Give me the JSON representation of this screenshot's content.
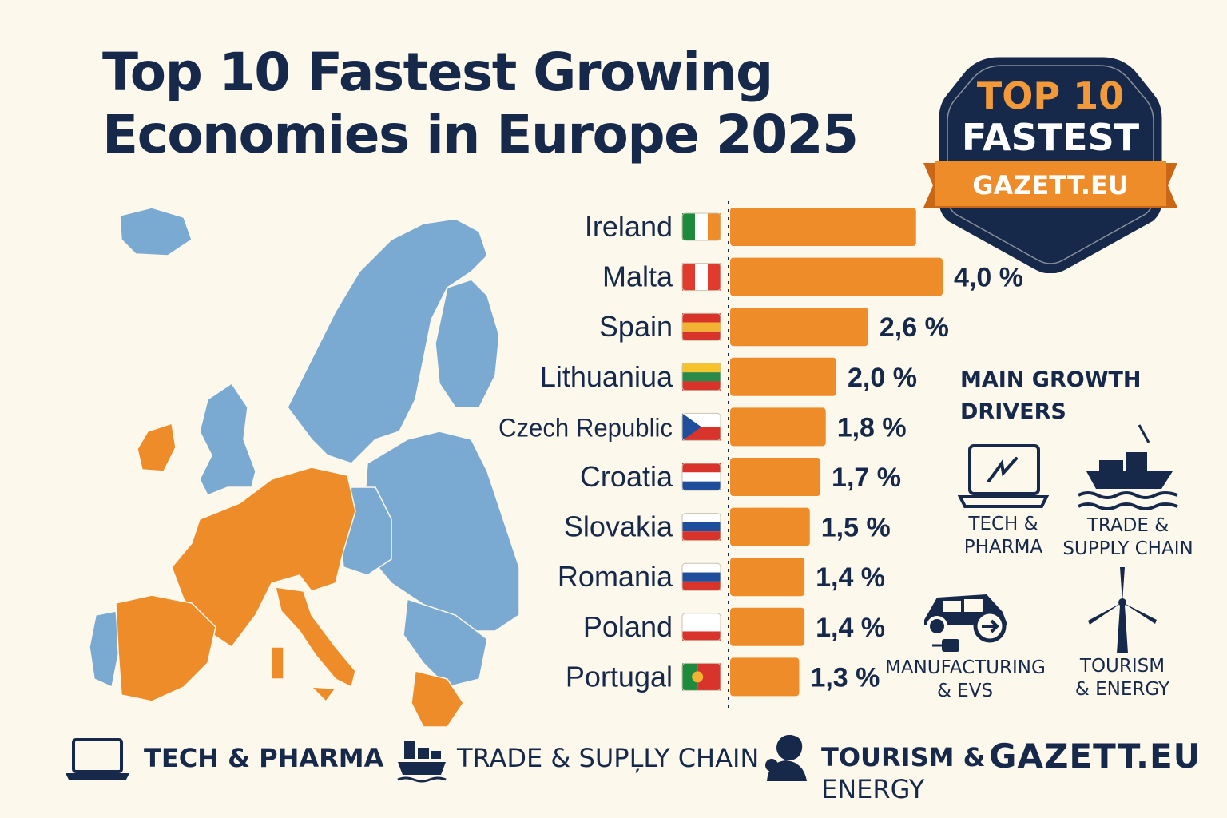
{
  "title": {
    "line1": "Top 10 Fastest Growing",
    "line2": "Economies in Europe 2025"
  },
  "badge": {
    "line1": "TOP 10",
    "line2": "FASTEST",
    "ribbon": "GAZETT.EU"
  },
  "colors": {
    "bar": "#ef8c2a",
    "map_highlight": "#ef8c2a",
    "map_other": "#7aa9d1",
    "navy": "#16294a",
    "background": "#fdf8ec"
  },
  "chart_data": {
    "type": "bar",
    "orientation": "horizontal",
    "categories": [
      "Ireland",
      "Malta",
      "Spain",
      "Lithuaniua",
      "Czech Republic",
      "Croatia",
      "Slovakia",
      "Romania",
      "Poland",
      "Portugal"
    ],
    "values": [
      3.5,
      4.0,
      2.6,
      2.0,
      1.8,
      1.7,
      1.5,
      1.4,
      1.4,
      1.3
    ],
    "value_labels": [
      "",
      "4,0 %",
      "2,6 %",
      "2,0 %",
      "1,8 %",
      "1,7 %",
      "1,5 %",
      "1,4 %",
      "1,4 %",
      "1,3 %"
    ],
    "xlim": [
      0,
      4.0
    ],
    "grid": false,
    "legend": "none"
  },
  "flags": [
    {
      "country": "Ireland",
      "icon": "ireland-flag-icon",
      "colors": [
        "#1e8a3c",
        "#ffffff",
        "#ef8c2a"
      ],
      "layout": "vertical"
    },
    {
      "country": "Malta",
      "icon": "malta-flag-icon",
      "colors": [
        "#e03b2c",
        "#ffffff",
        "#e03b2c"
      ],
      "layout": "vertical"
    },
    {
      "country": "Spain",
      "icon": "spain-flag-icon",
      "colors": [
        "#d9342b",
        "#f4b233",
        "#d9342b"
      ],
      "layout": "horizontal"
    },
    {
      "country": "Lithuaniua",
      "icon": "lithuania-flag-icon",
      "colors": [
        "#f6c32a",
        "#2a8a4a",
        "#d9342b"
      ],
      "layout": "horizontal"
    },
    {
      "country": "Czech Republic",
      "icon": "czech-flag-icon",
      "colors": [
        "#ffffff",
        "#d9342b",
        "#1f4f9c"
      ],
      "layout": "czech"
    },
    {
      "country": "Croatia",
      "icon": "croatia-flag-icon",
      "colors": [
        "#d9342b",
        "#ffffff",
        "#1f4f9c"
      ],
      "layout": "horizontal"
    },
    {
      "country": "Slovakia",
      "icon": "slovakia-flag-icon",
      "colors": [
        "#ffffff",
        "#1f4f9c",
        "#d9342b"
      ],
      "layout": "horizontal"
    },
    {
      "country": "Romania",
      "icon": "romania-flag-icon",
      "colors": [
        "#ffffff",
        "#1f4f9c",
        "#d9342b"
      ],
      "layout": "horizontal"
    },
    {
      "country": "Poland",
      "icon": "poland-flag-icon",
      "colors": [
        "#ffffff",
        "#ffffff",
        "#d9342b"
      ],
      "layout": "horizontal"
    },
    {
      "country": "Portugal",
      "icon": "portugal-flag-icon",
      "colors": [
        "#1e8a3c",
        "#d9342b",
        "#d9342b"
      ],
      "layout": "portugal"
    }
  ],
  "drivers": {
    "title_line1": "MAIN GROWTH",
    "title_line2": "DRIVERS",
    "items": [
      {
        "icon": "laptop-chart-icon",
        "line1": "TECH &",
        "line2": "PHARMA"
      },
      {
        "icon": "cargo-ship-icon",
        "line1": "TRADE &",
        "line2": "SUPPLY CHAIN"
      },
      {
        "icon": "electric-car-icon",
        "line1": "MANUFACTURING",
        "line2": "&  EVS"
      },
      {
        "icon": "wind-turbine-icon",
        "line1": "TOURISM",
        "line2": "& ENERGY"
      }
    ]
  },
  "footer": {
    "items": [
      {
        "icon": "laptop-icon",
        "text": "TECH & PHARMA"
      },
      {
        "icon": "cargo-containers-icon",
        "text": "TRADE & SUPĻLY CHAIN"
      },
      {
        "icon": "person-icon",
        "line1": "TOURISM &",
        "line2": "ENERGY"
      }
    ],
    "brand": "GAZETT.EU"
  }
}
